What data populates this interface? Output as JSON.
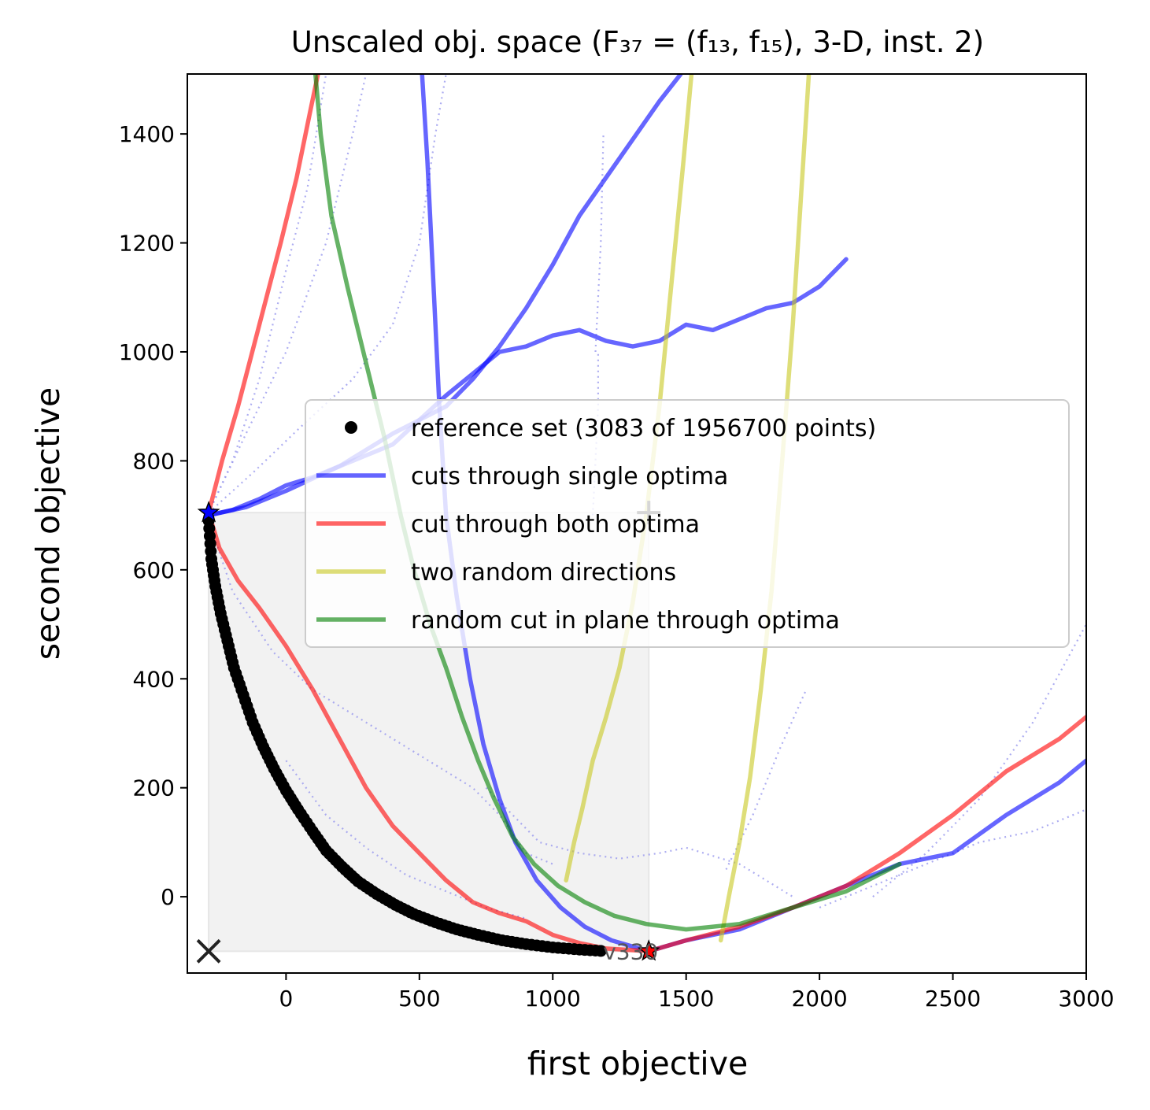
{
  "chart_data": {
    "type": "line",
    "title": "Unscaled obj. space (F₃₇ = (f₁₃, f₁₅), 3-D, inst. 2)",
    "xlabel": "first objective",
    "ylabel": "second objective",
    "xlim": [
      -370,
      3000
    ],
    "ylim": [
      -140,
      1510
    ],
    "xticks": [
      0,
      500,
      1000,
      1500,
      2000,
      2500,
      3000
    ],
    "yticks": [
      0,
      200,
      400,
      600,
      800,
      1000,
      1200,
      1400
    ],
    "xtick_labels": [
      "0",
      "500",
      "1000",
      "1500",
      "2000",
      "2500",
      "3000"
    ],
    "ytick_labels": [
      "0",
      "200",
      "400",
      "600",
      "800",
      "1000",
      "1200",
      "1400"
    ],
    "legend": {
      "placement": "center-right",
      "entries": [
        "reference set (3083 of 1956700 points)",
        "cuts through single optima",
        "cut through both optima",
        "two random directions",
        "random cut in plane through optima"
      ]
    },
    "annotations": {
      "end_label": "v330",
      "ideal_marker": [
        -290,
        -100
      ],
      "optimum_1": [
        -290,
        705
      ],
      "optimum_2": [
        1360,
        -100
      ],
      "plus_marker": [
        1360,
        705
      ]
    },
    "region": {
      "x": [
        -290,
        1360
      ],
      "y": [
        -100,
        705
      ]
    },
    "colors": {
      "reference": "#000000",
      "single": "#0000ff",
      "both": "#ff0000",
      "random": "#c8c820",
      "plane": "#008000",
      "dotted": "#9999ee"
    },
    "reference_set": [
      [
        -290,
        690
      ],
      [
        -280,
        620
      ],
      [
        -265,
        570
      ],
      [
        -245,
        520
      ],
      [
        -220,
        470
      ],
      [
        -195,
        420
      ],
      [
        -160,
        370
      ],
      [
        -125,
        320
      ],
      [
        -85,
        275
      ],
      [
        -45,
        235
      ],
      [
        0,
        195
      ],
      [
        45,
        160
      ],
      [
        100,
        120
      ],
      [
        150,
        85
      ],
      [
        210,
        55
      ],
      [
        270,
        28
      ],
      [
        340,
        5
      ],
      [
        410,
        -15
      ],
      [
        480,
        -32
      ],
      [
        560,
        -47
      ],
      [
        640,
        -60
      ],
      [
        720,
        -70
      ],
      [
        810,
        -80
      ],
      [
        900,
        -87
      ],
      [
        1000,
        -93
      ],
      [
        1100,
        -97
      ],
      [
        1200,
        -100
      ]
    ],
    "series": [
      {
        "name": "cuts through single optima",
        "color": "#0000ff",
        "points": [
          [
            -290,
            700
          ],
          [
            -200,
            710
          ],
          [
            -100,
            730
          ],
          [
            0,
            755
          ],
          [
            100,
            770
          ],
          [
            200,
            790
          ],
          [
            300,
            810
          ],
          [
            400,
            830
          ],
          [
            500,
            875
          ],
          [
            600,
            920
          ],
          [
            700,
            960
          ],
          [
            800,
            1000
          ],
          [
            900,
            1010
          ],
          [
            1000,
            1030
          ],
          [
            1100,
            1040
          ],
          [
            1200,
            1020
          ],
          [
            1300,
            1010
          ],
          [
            1400,
            1020
          ],
          [
            1500,
            1050
          ],
          [
            1600,
            1040
          ],
          [
            1700,
            1060
          ],
          [
            1800,
            1080
          ],
          [
            1900,
            1090
          ],
          [
            2000,
            1120
          ],
          [
            2100,
            1170
          ]
        ]
      },
      {
        "name": "",
        "color": "#0000ff",
        "points": [
          [
            -290,
            700
          ],
          [
            -150,
            715
          ],
          [
            0,
            745
          ],
          [
            200,
            790
          ],
          [
            400,
            850
          ],
          [
            600,
            900
          ],
          [
            700,
            950
          ],
          [
            800,
            1010
          ],
          [
            900,
            1080
          ],
          [
            1000,
            1160
          ],
          [
            1100,
            1250
          ],
          [
            1200,
            1320
          ],
          [
            1300,
            1390
          ],
          [
            1400,
            1460
          ],
          [
            1480,
            1510
          ]
        ]
      },
      {
        "name": "",
        "color": "#0000ff",
        "points": [
          [
            1360,
            -100
          ],
          [
            1500,
            -80
          ],
          [
            1700,
            -60
          ],
          [
            1900,
            -20
          ],
          [
            2100,
            20
          ],
          [
            2300,
            60
          ],
          [
            2500,
            80
          ],
          [
            2700,
            150
          ],
          [
            2900,
            210
          ],
          [
            3000,
            250
          ]
        ]
      },
      {
        "name": "",
        "color": "#0000ff",
        "points": [
          [
            510,
            1510
          ],
          [
            530,
            1350
          ],
          [
            555,
            1100
          ],
          [
            575,
            900
          ],
          [
            600,
            700
          ],
          [
            640,
            550
          ],
          [
            690,
            400
          ],
          [
            740,
            280
          ],
          [
            800,
            180
          ],
          [
            860,
            100
          ],
          [
            940,
            30
          ],
          [
            1030,
            -20
          ],
          [
            1120,
            -55
          ],
          [
            1220,
            -80
          ],
          [
            1360,
            -100
          ]
        ]
      },
      {
        "name": "cut through both optima",
        "color": "#ff0000",
        "points": [
          [
            -290,
            705
          ],
          [
            -250,
            640
          ],
          [
            -180,
            580
          ],
          [
            -100,
            530
          ],
          [
            0,
            460
          ],
          [
            100,
            380
          ],
          [
            200,
            290
          ],
          [
            300,
            200
          ],
          [
            400,
            130
          ],
          [
            500,
            80
          ],
          [
            600,
            30
          ],
          [
            700,
            -10
          ],
          [
            800,
            -30
          ],
          [
            900,
            -45
          ],
          [
            1000,
            -70
          ],
          [
            1100,
            -85
          ],
          [
            1200,
            -95
          ],
          [
            1360,
            -100
          ]
        ]
      },
      {
        "name": "",
        "color": "#ff0000",
        "points": [
          [
            -290,
            705
          ],
          [
            -240,
            800
          ],
          [
            -180,
            900
          ],
          [
            -100,
            1050
          ],
          [
            -20,
            1200
          ],
          [
            40,
            1320
          ],
          [
            90,
            1440
          ],
          [
            120,
            1510
          ]
        ]
      },
      {
        "name": "",
        "color": "#ff0000",
        "points": [
          [
            1360,
            -100
          ],
          [
            1500,
            -80
          ],
          [
            1700,
            -55
          ],
          [
            1900,
            -20
          ],
          [
            2100,
            20
          ],
          [
            2300,
            80
          ],
          [
            2500,
            150
          ],
          [
            2700,
            230
          ],
          [
            2900,
            290
          ],
          [
            3000,
            330
          ]
        ]
      },
      {
        "name": "two random directions",
        "color": "#c8c820",
        "points": [
          [
            1050,
            30
          ],
          [
            1080,
            100
          ],
          [
            1110,
            160
          ],
          [
            1150,
            250
          ],
          [
            1200,
            330
          ],
          [
            1250,
            420
          ],
          [
            1300,
            540
          ],
          [
            1350,
            700
          ],
          [
            1400,
            900
          ],
          [
            1450,
            1150
          ],
          [
            1490,
            1350
          ],
          [
            1520,
            1510
          ]
        ]
      },
      {
        "name": "",
        "color": "#c8c820",
        "points": [
          [
            1630,
            -80
          ],
          [
            1660,
            0
          ],
          [
            1700,
            100
          ],
          [
            1740,
            220
          ],
          [
            1780,
            380
          ],
          [
            1820,
            560
          ],
          [
            1860,
            800
          ],
          [
            1900,
            1050
          ],
          [
            1930,
            1280
          ],
          [
            1960,
            1510
          ]
        ]
      },
      {
        "name": "random cut in plane through optima",
        "color": "#008000",
        "points": [
          [
            110,
            1510
          ],
          [
            130,
            1400
          ],
          [
            170,
            1250
          ],
          [
            230,
            1120
          ],
          [
            300,
            980
          ],
          [
            370,
            840
          ],
          [
            430,
            700
          ],
          [
            480,
            600
          ],
          [
            540,
            500
          ],
          [
            600,
            420
          ],
          [
            660,
            330
          ],
          [
            720,
            250
          ],
          [
            780,
            180
          ],
          [
            850,
            110
          ],
          [
            930,
            60
          ],
          [
            1020,
            20
          ],
          [
            1120,
            -10
          ],
          [
            1230,
            -35
          ],
          [
            1350,
            -50
          ],
          [
            1500,
            -60
          ],
          [
            1700,
            -50
          ],
          [
            1900,
            -20
          ],
          [
            2100,
            10
          ],
          [
            2300,
            60
          ]
        ]
      }
    ],
    "dotted_series": [
      [
        [
          -290,
          705
        ],
        [
          -200,
          800
        ],
        [
          -100,
          950
        ],
        [
          0,
          1150
        ],
        [
          80,
          1300
        ],
        [
          150,
          1510
        ]
      ],
      [
        [
          -290,
          705
        ],
        [
          -150,
          850
        ],
        [
          0,
          1000
        ],
        [
          150,
          1200
        ],
        [
          250,
          1400
        ],
        [
          300,
          1510
        ]
      ],
      [
        [
          -290,
          705
        ],
        [
          -120,
          780
        ],
        [
          50,
          860
        ],
        [
          250,
          950
        ],
        [
          400,
          1050
        ],
        [
          500,
          1200
        ],
        [
          560,
          1400
        ],
        [
          600,
          1510
        ]
      ],
      [
        [
          -290,
          690
        ],
        [
          -200,
          560
        ],
        [
          -50,
          450
        ],
        [
          100,
          380
        ],
        [
          300,
          320
        ],
        [
          500,
          260
        ],
        [
          700,
          200
        ],
        [
          800,
          150
        ],
        [
          900,
          80
        ],
        [
          1000,
          60
        ]
      ],
      [
        [
          0,
          250
        ],
        [
          150,
          150
        ],
        [
          300,
          90
        ],
        [
          450,
          40
        ],
        [
          600,
          10
        ],
        [
          750,
          -20
        ],
        [
          900,
          -40
        ]
      ],
      [
        [
          750,
          200
        ],
        [
          850,
          150
        ],
        [
          950,
          100
        ],
        [
          1100,
          80
        ],
        [
          1250,
          70
        ],
        [
          1400,
          80
        ],
        [
          1500,
          90
        ],
        [
          1700,
          60
        ],
        [
          1800,
          30
        ],
        [
          1900,
          0
        ]
      ],
      [
        [
          1650,
          50
        ],
        [
          1750,
          150
        ],
        [
          1850,
          270
        ],
        [
          1950,
          380
        ]
      ],
      [
        [
          2000,
          -20
        ],
        [
          2200,
          20
        ],
        [
          2400,
          60
        ],
        [
          2600,
          100
        ],
        [
          2800,
          120
        ],
        [
          3000,
          160
        ]
      ],
      [
        [
          2200,
          0
        ],
        [
          2400,
          80
        ],
        [
          2600,
          180
        ],
        [
          2800,
          320
        ],
        [
          3000,
          500
        ]
      ],
      [
        [
          1160,
          1000
        ],
        [
          1180,
          1200
        ],
        [
          1190,
          1400
        ]
      ],
      [
        [
          1150,
          700
        ],
        [
          1160,
          800
        ],
        [
          1170,
          900
        ],
        [
          1170,
          1000
        ]
      ]
    ]
  }
}
